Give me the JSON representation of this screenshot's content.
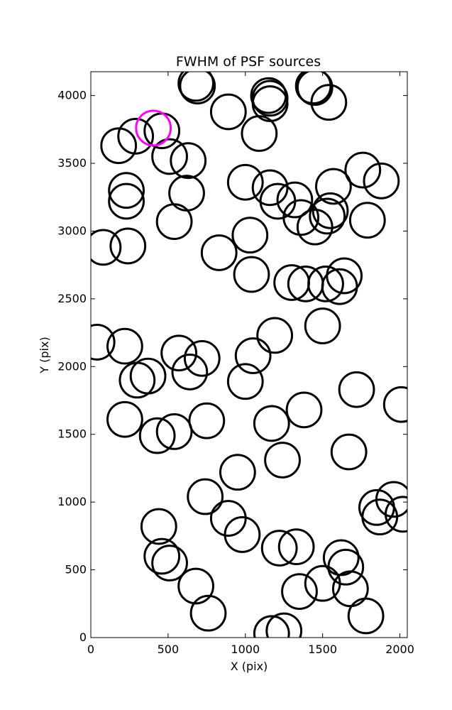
{
  "chart_data": {
    "type": "scatter",
    "title": "FWHM of PSF sources",
    "xlabel": "X (pix)",
    "ylabel": "Y (pix)",
    "xlim": [
      0,
      2048
    ],
    "ylim": [
      0,
      4176
    ],
    "xticks": [
      0,
      500,
      1000,
      1500,
      2000
    ],
    "yticks": [
      0,
      500,
      1000,
      1500,
      2000,
      2500,
      3000,
      3500,
      4000
    ],
    "grid": false,
    "marker_radius": 112,
    "colors": {
      "source": "#000000",
      "highlight": "#ff00ff"
    },
    "highlight": {
      "x": 405,
      "y": 3760
    },
    "sources": [
      [
        680,
        4090
      ],
      [
        690,
        4070
      ],
      [
        890,
        3880
      ],
      [
        1150,
        4000
      ],
      [
        1160,
        3980
      ],
      [
        1160,
        3940
      ],
      [
        1440,
        4070
      ],
      [
        1450,
        4060
      ],
      [
        1540,
        3950
      ],
      [
        1090,
        3720
      ],
      [
        290,
        3700
      ],
      [
        460,
        3740
      ],
      [
        180,
        3630
      ],
      [
        510,
        3550
      ],
      [
        630,
        3520
      ],
      [
        1760,
        3450
      ],
      [
        1880,
        3370
      ],
      [
        1000,
        3360
      ],
      [
        1160,
        3320
      ],
      [
        1210,
        3220
      ],
      [
        1320,
        3230
      ],
      [
        1570,
        3330
      ],
      [
        1360,
        3100
      ],
      [
        1450,
        3030
      ],
      [
        1550,
        3150
      ],
      [
        1530,
        3110
      ],
      [
        1790,
        3080
      ],
      [
        230,
        3300
      ],
      [
        230,
        3220
      ],
      [
        620,
        3280
      ],
      [
        540,
        3070
      ],
      [
        80,
        2880
      ],
      [
        240,
        2890
      ],
      [
        830,
        2840
      ],
      [
        1030,
        2970
      ],
      [
        1040,
        2680
      ],
      [
        1300,
        2620
      ],
      [
        1390,
        2610
      ],
      [
        1520,
        2610
      ],
      [
        1610,
        2590
      ],
      [
        1640,
        2670
      ],
      [
        1500,
        2300
      ],
      [
        40,
        2180
      ],
      [
        220,
        2150
      ],
      [
        570,
        2100
      ],
      [
        720,
        2060
      ],
      [
        640,
        1960
      ],
      [
        370,
        1930
      ],
      [
        300,
        1900
      ],
      [
        1050,
        2080
      ],
      [
        1190,
        2230
      ],
      [
        1000,
        1890
      ],
      [
        1720,
        1830
      ],
      [
        2010,
        1720
      ],
      [
        220,
        1610
      ],
      [
        430,
        1490
      ],
      [
        540,
        1520
      ],
      [
        750,
        1600
      ],
      [
        1170,
        1580
      ],
      [
        1380,
        1680
      ],
      [
        1240,
        1310
      ],
      [
        1670,
        1370
      ],
      [
        950,
        1220
      ],
      [
        740,
        1040
      ],
      [
        440,
        820
      ],
      [
        890,
        880
      ],
      [
        980,
        760
      ],
      [
        1220,
        660
      ],
      [
        1330,
        670
      ],
      [
        1850,
        960
      ],
      [
        1960,
        1020
      ],
      [
        1870,
        890
      ],
      [
        2020,
        910
      ],
      [
        460,
        600
      ],
      [
        510,
        550
      ],
      [
        680,
        380
      ],
      [
        760,
        180
      ],
      [
        1350,
        340
      ],
      [
        1500,
        400
      ],
      [
        1620,
        590
      ],
      [
        1650,
        520
      ],
      [
        1680,
        360
      ],
      [
        1780,
        160
      ],
      [
        1170,
        30
      ],
      [
        1250,
        50
      ]
    ]
  }
}
